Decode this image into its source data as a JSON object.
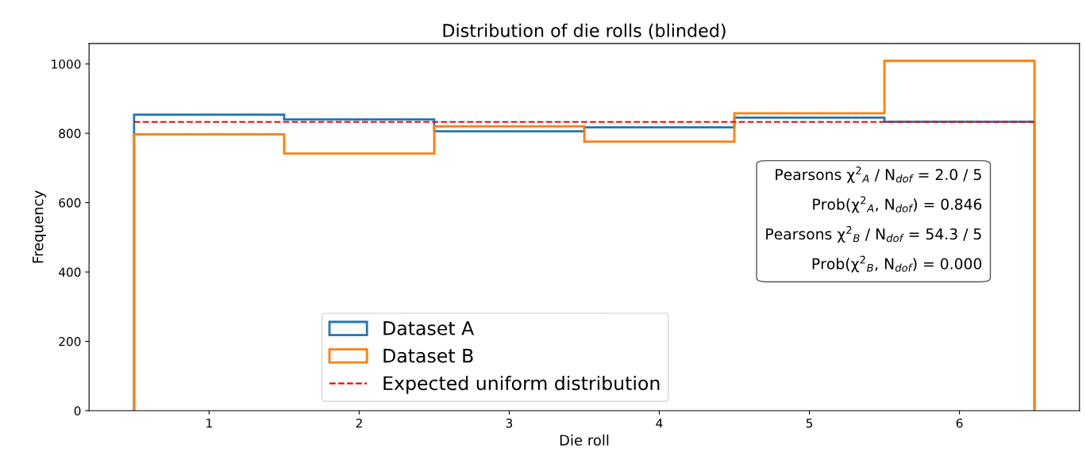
{
  "chart_data": {
    "type": "histogram",
    "title": "Distribution of die rolls (blinded)",
    "xlabel": "Die roll",
    "ylabel": "Frequency",
    "bins": [
      0.5,
      1.5,
      2.5,
      3.5,
      4.5,
      5.5,
      6.5
    ],
    "series": [
      {
        "name": "Dataset A",
        "color": "#1f77b4",
        "values": [
          854,
          840,
          806,
          817,
          845,
          833
        ]
      },
      {
        "name": "Dataset B",
        "color": "#ff7f0e",
        "values": [
          797,
          742,
          820,
          776,
          858,
          1009
        ]
      },
      {
        "name": "Expected uniform distribution",
        "type": "line",
        "color": "#ff0000",
        "line_style": "dashed",
        "x": [
          0.5,
          6.5
        ],
        "values": [
          833,
          833
        ]
      }
    ],
    "xlim": [
      0.2,
      6.8
    ],
    "xticks": [
      1,
      2,
      3,
      4,
      5,
      6
    ],
    "ylim": [
      0,
      1059
    ],
    "yticks": [
      0,
      200,
      400,
      600,
      800,
      1000
    ],
    "grid": false,
    "legend": "bottom",
    "annotations": [
      "Pearsons χ$^{2}$$_{A}$ / N$_{dof}$ = 2.0 / 5",
      "Prob(χ$^{2}$$_{A}$, N$_{dof}$) = 0.846",
      "Pearsons χ$^{2}$$_{B}$ / N$_{dof}$ = 54.3 / 5",
      "Prob(χ$^{2}$$_{B}$, N$_{dof}$) = 0.000"
    ]
  }
}
